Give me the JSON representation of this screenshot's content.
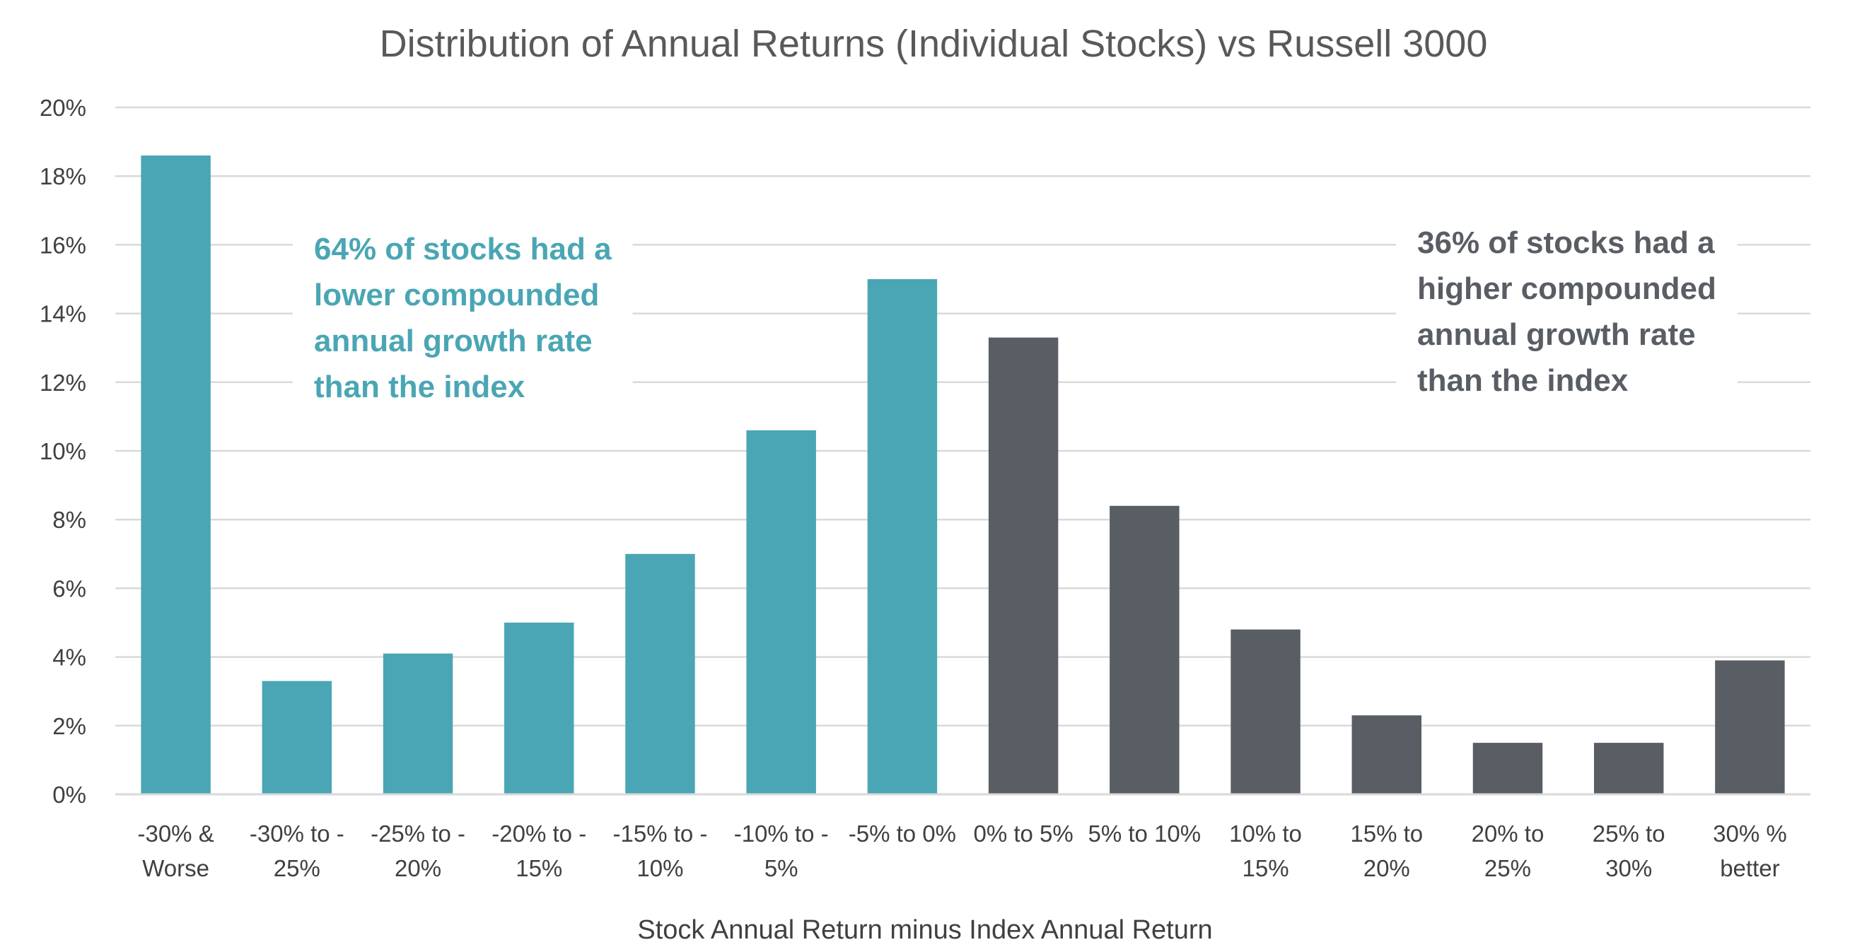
{
  "chart_data": {
    "type": "bar",
    "title": "Distribution of Annual Returns (Individual Stocks) vs Russell 3000",
    "xlabel": "Stock Annual Return minus Index Annual Return",
    "ylabel": "",
    "ylim": [
      0,
      20
    ],
    "y_tick_values": [
      0,
      2,
      4,
      6,
      8,
      10,
      12,
      14,
      16,
      18,
      20
    ],
    "y_tick_suffix": "%",
    "grid": true,
    "categories": [
      [
        "-30% &",
        "Worse"
      ],
      [
        "-30% to -",
        "25%"
      ],
      [
        "-25% to -",
        "20%"
      ],
      [
        "-20% to -",
        "15%"
      ],
      [
        "-15% to -",
        "10%"
      ],
      [
        "-10% to -",
        "5%"
      ],
      [
        "-5% to 0%"
      ],
      [
        "0% to 5%"
      ],
      [
        "5% to 10%"
      ],
      [
        "10% to",
        "15%"
      ],
      [
        "15% to",
        "20%"
      ],
      [
        "20% to",
        "25%"
      ],
      [
        "25% to",
        "30%"
      ],
      [
        "30% %",
        "better"
      ]
    ],
    "values": [
      18.6,
      3.3,
      4.1,
      5.0,
      7.0,
      10.6,
      15.0,
      13.3,
      8.4,
      4.8,
      2.3,
      1.5,
      1.5,
      3.9
    ],
    "bar_group": [
      "lower",
      "lower",
      "lower",
      "lower",
      "lower",
      "lower",
      "lower",
      "higher",
      "higher",
      "higher",
      "higher",
      "higher",
      "higher",
      "higher"
    ],
    "colors": {
      "lower": "#4aa6b4",
      "higher": "#595d64"
    },
    "annotations": [
      {
        "group": "lower",
        "lines": [
          "64% of stocks had a",
          "lower compounded",
          "annual growth rate",
          "than the index"
        ],
        "color": "#4aa6b4"
      },
      {
        "group": "higher",
        "lines": [
          "36% of stocks had a",
          "higher compounded",
          "annual growth rate",
          "than the index"
        ],
        "color": "#595d64"
      }
    ]
  }
}
